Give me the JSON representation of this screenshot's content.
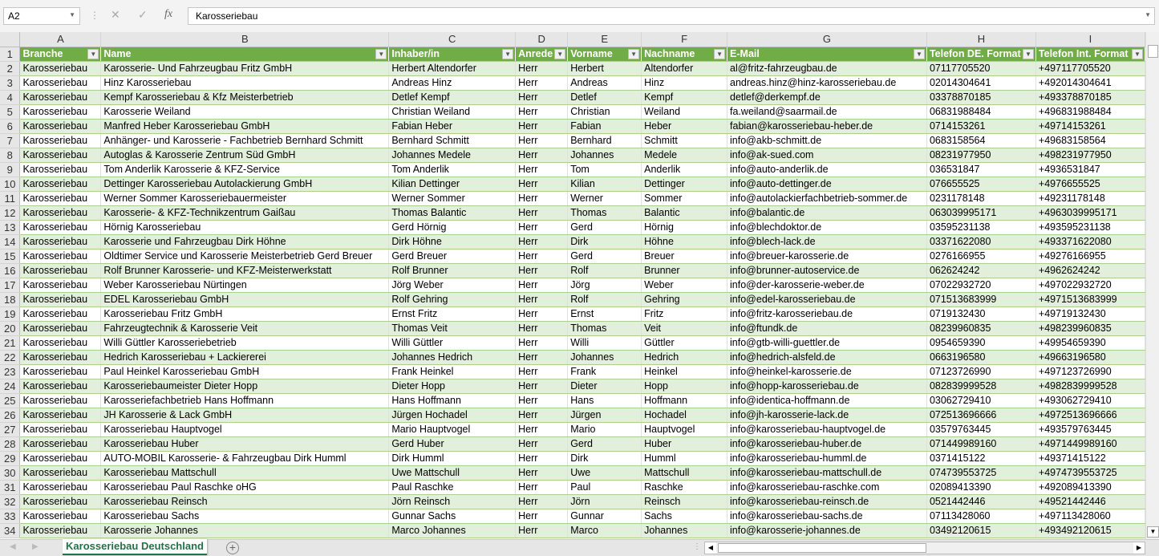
{
  "formula_bar": {
    "name_box": "A2",
    "formula": "Karosseriebau"
  },
  "columns": [
    "A",
    "B",
    "C",
    "D",
    "E",
    "F",
    "G",
    "H",
    "I"
  ],
  "headers": [
    "Branche",
    "Name",
    "Inhaber/in",
    "Anrede",
    "Vorname",
    "Nachname",
    "E-Mail",
    "Telefon DE. Format",
    "Telefon Int. Format"
  ],
  "rows": [
    [
      "Karosseriebau",
      "Karosserie- Und Fahrzeugbau Fritz GmbH",
      "Herbert Altendorfer",
      "Herr",
      "Herbert",
      "Altendorfer",
      "al@fritz-fahrzeugbau.de",
      "07117705520",
      "+497117705520"
    ],
    [
      "Karosseriebau",
      "Hinz Karosseriebau",
      "Andreas Hinz",
      "Herr",
      "Andreas",
      "Hinz",
      "andreas.hinz@hinz-karosseriebau.de",
      "02014304641",
      "+492014304641"
    ],
    [
      "Karosseriebau",
      "Kempf Karosseriebau & Kfz Meisterbetrieb",
      "Detlef Kempf",
      "Herr",
      "Detlef",
      "Kempf",
      "detlef@derkempf.de",
      "03378870185",
      "+493378870185"
    ],
    [
      "Karosseriebau",
      "Karosserie Weiland",
      "Christian Weiland",
      "Herr",
      "Christian",
      "Weiland",
      "fa.weiland@saarmail.de",
      "06831988484",
      "+496831988484"
    ],
    [
      "Karosseriebau",
      "Manfred Heber Karosseriebau GmbH",
      "Fabian Heber",
      "Herr",
      "Fabian",
      "Heber",
      "fabian@karosseriebau-heber.de",
      "0714153261",
      "+49714153261"
    ],
    [
      "Karosseriebau",
      "Anhänger- und Karosserie - Fachbetrieb Bernhard Schmitt",
      "Bernhard Schmitt",
      "Herr",
      "Bernhard",
      "Schmitt",
      "info@akb-schmitt.de",
      "0683158564",
      "+49683158564"
    ],
    [
      "Karosseriebau",
      "Autoglas & Karosserie Zentrum Süd GmbH",
      "Johannes Medele",
      "Herr",
      "Johannes",
      "Medele",
      "info@ak-sued.com",
      "08231977950",
      "+498231977950"
    ],
    [
      "Karosseriebau",
      "Tom Anderlik Karosserie & KFZ-Service",
      "Tom Anderlik",
      "Herr",
      "Tom",
      "Anderlik",
      "info@auto-anderlik.de",
      "036531847",
      "+4936531847"
    ],
    [
      "Karosseriebau",
      "Dettinger Karosseriebau Autolackierung GmbH",
      "Kilian Dettinger",
      "Herr",
      "Kilian",
      "Dettinger",
      "info@auto-dettinger.de",
      "076655525",
      "+4976655525"
    ],
    [
      "Karosseriebau",
      "Werner Sommer Karosseriebauermeister",
      "Werner Sommer",
      "Herr",
      "Werner",
      "Sommer",
      "info@autolackierfachbetrieb-sommer.de",
      "0231178148",
      "+49231178148"
    ],
    [
      "Karosseriebau",
      "Karosserie- & KFZ-Technikzentrum Gaißau",
      "Thomas Balantic",
      "Herr",
      "Thomas",
      "Balantic",
      "info@balantic.de",
      "063039995171",
      "+4963039995171"
    ],
    [
      "Karosseriebau",
      "Hörnig Karosseriebau",
      "Gerd Hörnig",
      "Herr",
      "Gerd",
      "Hörnig",
      "info@blechdoktor.de",
      "03595231138",
      "+493595231138"
    ],
    [
      "Karosseriebau",
      "Karosserie und Fahrzeugbau Dirk Höhne",
      "Dirk Höhne",
      "Herr",
      "Dirk",
      "Höhne",
      "info@blech-lack.de",
      "03371622080",
      "+493371622080"
    ],
    [
      "Karosseriebau",
      "Oldtimer Service und Karosserie Meisterbetrieb Gerd Breuer",
      "Gerd Breuer",
      "Herr",
      "Gerd",
      "Breuer",
      "info@breuer-karosserie.de",
      "0276166955",
      "+49276166955"
    ],
    [
      "Karosseriebau",
      "Rolf Brunner Karosserie- und KFZ-Meisterwerkstatt",
      "Rolf Brunner",
      "Herr",
      "Rolf",
      "Brunner",
      "info@brunner-autoservice.de",
      "062624242",
      "+4962624242"
    ],
    [
      "Karosseriebau",
      "Weber Karosseriebau Nürtingen",
      "Jörg Weber",
      "Herr",
      "Jörg",
      "Weber",
      "info@der-karosserie-weber.de",
      "07022932720",
      "+497022932720"
    ],
    [
      "Karosseriebau",
      "EDEL Karosseriebau GmbH",
      "Rolf Gehring",
      "Herr",
      "Rolf",
      "Gehring",
      "info@edel-karosseriebau.de",
      "071513683999",
      "+4971513683999"
    ],
    [
      "Karosseriebau",
      "Karosseriebau Fritz GmbH",
      "Ernst Fritz",
      "Herr",
      "Ernst",
      "Fritz",
      "info@fritz-karosseriebau.de",
      "0719132430",
      "+49719132430"
    ],
    [
      "Karosseriebau",
      "Fahrzeugtechnik & Karosserie Veit",
      "Thomas Veit",
      "Herr",
      "Thomas",
      "Veit",
      "info@ftundk.de",
      "08239960835",
      "+498239960835"
    ],
    [
      "Karosseriebau",
      "Willi Güttler Karosseriebetrieb",
      "Willi Güttler",
      "Herr",
      "Willi",
      "Güttler",
      "info@gtb-willi-guettler.de",
      "0954659390",
      "+49954659390"
    ],
    [
      "Karosseriebau",
      "Hedrich Karosseriebau + Lackiererei",
      "Johannes Hedrich",
      "Herr",
      "Johannes",
      "Hedrich",
      "info@hedrich-alsfeld.de",
      "0663196580",
      "+49663196580"
    ],
    [
      "Karosseriebau",
      "Paul Heinkel Karosseriebau GmbH",
      "Frank Heinkel",
      "Herr",
      "Frank",
      "Heinkel",
      "info@heinkel-karosserie.de",
      "07123726990",
      "+497123726990"
    ],
    [
      "Karosseriebau",
      "Karosseriebaumeister Dieter Hopp",
      "Dieter Hopp",
      "Herr",
      "Dieter",
      "Hopp",
      "info@hopp-karosseriebau.de",
      "082839999528",
      "+4982839999528"
    ],
    [
      "Karosseriebau",
      "Karosseriefachbetrieb Hans Hoffmann",
      "Hans Hoffmann",
      "Herr",
      "Hans",
      "Hoffmann",
      "info@identica-hoffmann.de",
      "03062729410",
      "+493062729410"
    ],
    [
      "Karosseriebau",
      "JH Karosserie & Lack GmbH",
      "Jürgen Hochadel",
      "Herr",
      "Jürgen",
      "Hochadel",
      "info@jh-karosserie-lack.de",
      "072513696666",
      "+4972513696666"
    ],
    [
      "Karosseriebau",
      "Karosseriebau Hauptvogel",
      "Mario Hauptvogel",
      "Herr",
      "Mario",
      "Hauptvogel",
      "info@karosseriebau-hauptvogel.de",
      "03579763445",
      "+493579763445"
    ],
    [
      "Karosseriebau",
      "Karosseriebau Huber",
      "Gerd Huber",
      "Herr",
      "Gerd",
      "Huber",
      "info@karosseriebau-huber.de",
      "071449989160",
      "+4971449989160"
    ],
    [
      "Karosseriebau",
      "AUTO-MOBIL Karosserie- & Fahrzeugbau Dirk Humml",
      "Dirk Humml",
      "Herr",
      "Dirk",
      "Humml",
      "info@karosseriebau-humml.de",
      "0371415122",
      "+49371415122"
    ],
    [
      "Karosseriebau",
      "Karosseriebau Mattschull",
      "Uwe Mattschull",
      "Herr",
      "Uwe",
      "Mattschull",
      "info@karosseriebau-mattschull.de",
      "074739553725",
      "+4974739553725"
    ],
    [
      "Karosseriebau",
      "Karosseriebau Paul Raschke oHG",
      "Paul Raschke",
      "Herr",
      "Paul",
      "Raschke",
      "info@karosseriebau-raschke.com",
      "02089413390",
      "+492089413390"
    ],
    [
      "Karosseriebau",
      "Karosseriebau Reinsch",
      "Jörn Reinsch",
      "Herr",
      "Jörn",
      "Reinsch",
      "info@karosseriebau-reinsch.de",
      "0521442446",
      "+49521442446"
    ],
    [
      "Karosseriebau",
      "Karosseriebau Sachs",
      "Gunnar Sachs",
      "Herr",
      "Gunnar",
      "Sachs",
      "info@karosseriebau-sachs.de",
      "07113428060",
      "+497113428060"
    ],
    [
      "Karosseriebau",
      "Karosserie Johannes",
      "Marco Johannes",
      "Herr",
      "Marco",
      "Johannes",
      "info@karosserie-johannes.de",
      "03492120615",
      "+493492120615"
    ]
  ],
  "sheet_tabs": [
    {
      "label": "Karosseriebau Deutschland",
      "active": true
    }
  ],
  "colors": {
    "header_green": "#70ad47",
    "band_green": "#e2efda",
    "tab_green": "#217346"
  }
}
